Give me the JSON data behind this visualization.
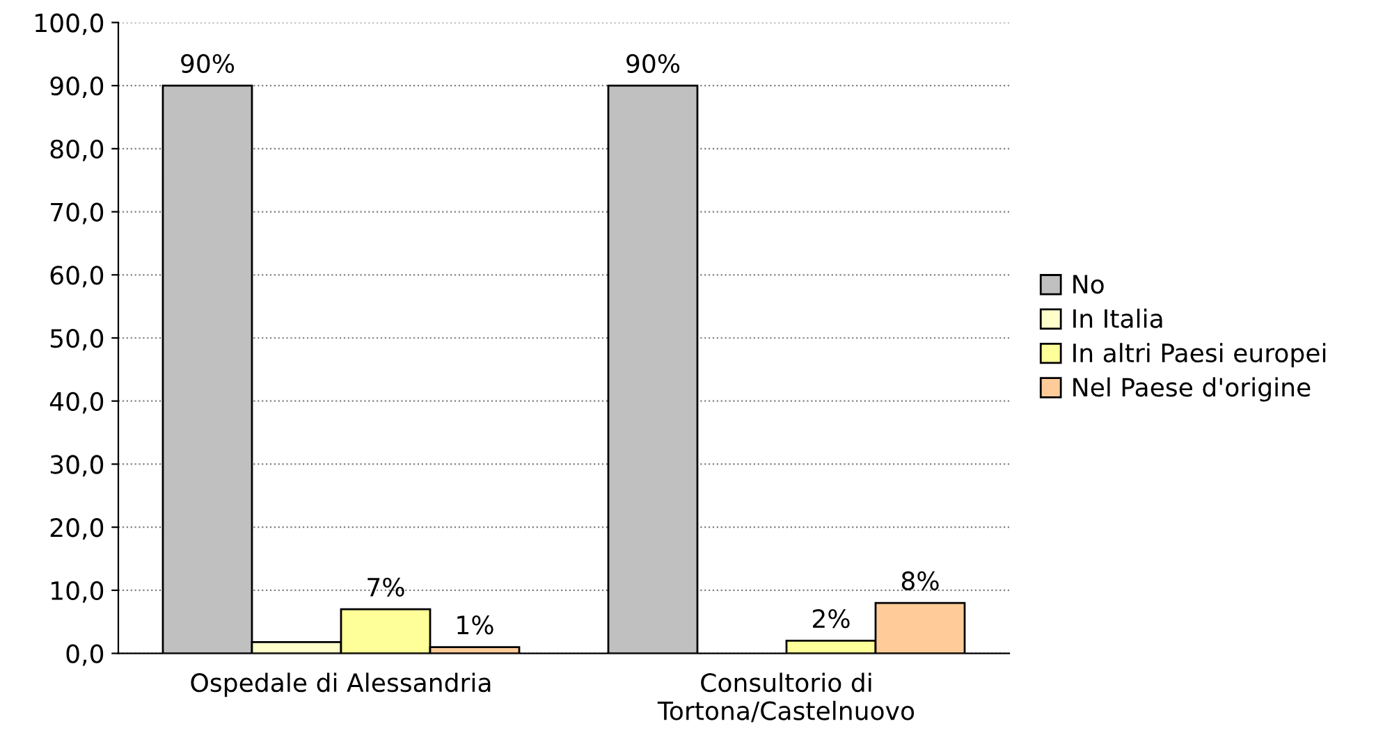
{
  "chart_data": {
    "type": "bar",
    "categories": [
      "Ospedale di Alessandria",
      "Consultorio di\nTortona/Castelnuovo"
    ],
    "series": [
      {
        "name": "No",
        "color": "#c0c0c0",
        "values": [
          90,
          90
        ],
        "value_labels": [
          "90%",
          "90%"
        ]
      },
      {
        "name": "In Italia",
        "color": "#ffffcc",
        "values": [
          1.8,
          null
        ],
        "value_labels": [
          null,
          null
        ]
      },
      {
        "name": "In altri Paesi europei",
        "color": "#ffff99",
        "values": [
          7,
          2
        ],
        "value_labels": [
          "7%",
          "2%"
        ]
      },
      {
        "name": "Nel Paese d'origine",
        "color": "#ffcc99",
        "values": [
          1,
          8
        ],
        "value_labels": [
          "1%",
          "8%"
        ]
      }
    ],
    "ylim": [
      0,
      100
    ],
    "yticks": [
      {
        "value": 0,
        "label": "0,0"
      },
      {
        "value": 10,
        "label": "10,0"
      },
      {
        "value": 20,
        "label": "20,0"
      },
      {
        "value": 30,
        "label": "30,0"
      },
      {
        "value": 40,
        "label": "40,0"
      },
      {
        "value": 50,
        "label": "50,0"
      },
      {
        "value": 60,
        "label": "60,0"
      },
      {
        "value": 70,
        "label": "70,0"
      },
      {
        "value": 80,
        "label": "80,0"
      },
      {
        "value": 90,
        "label": "90,0"
      },
      {
        "value": 100,
        "label": "100,0"
      }
    ],
    "grid": "y",
    "legend": "right"
  }
}
